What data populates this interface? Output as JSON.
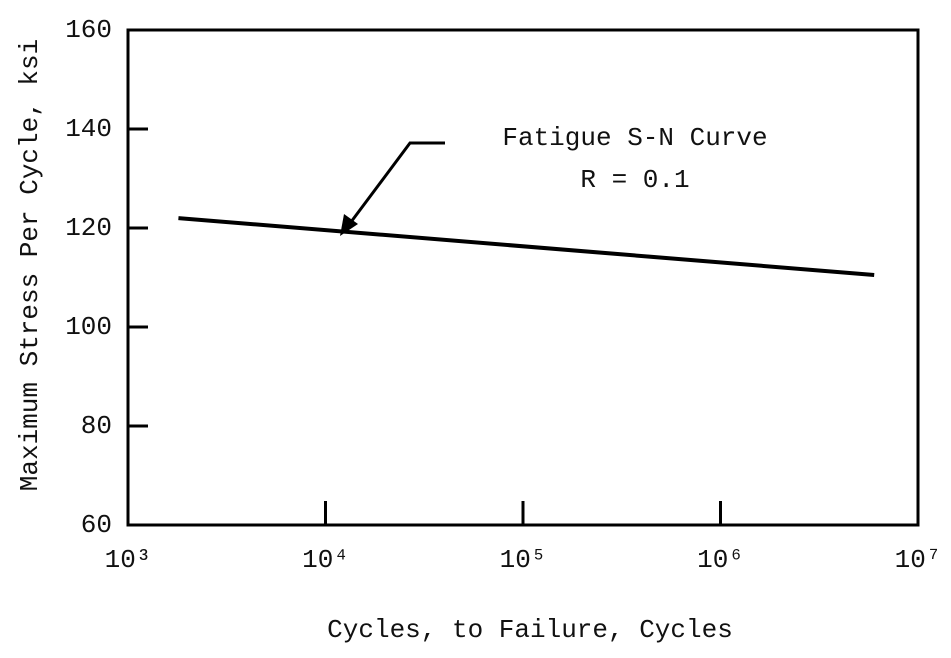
{
  "chart_data": {
    "type": "line",
    "x_label": "Cycles, to Failure, Cycles",
    "y_label": "Maximum Stress Per Cycle, ksi",
    "annotation": [
      "Fatigue S-N Curve",
      "R = 0.1"
    ],
    "xscale": "log",
    "x": [
      1800,
      6000000
    ],
    "values": [
      122,
      110.5
    ],
    "color": "#000000",
    "xlim": [
      1000,
      10000000
    ],
    "xticks": [
      {
        "value": 1000,
        "label": "10³"
      },
      {
        "value": 10000,
        "label": "10⁴"
      },
      {
        "value": 100000,
        "label": "10⁵"
      },
      {
        "value": 1000000,
        "label": "10⁶"
      },
      {
        "value": 10000000,
        "label": "10⁷"
      }
    ],
    "ylim": [
      60,
      160
    ],
    "yticks": [
      60,
      80,
      100,
      120,
      140,
      160
    ],
    "grid": false
  }
}
